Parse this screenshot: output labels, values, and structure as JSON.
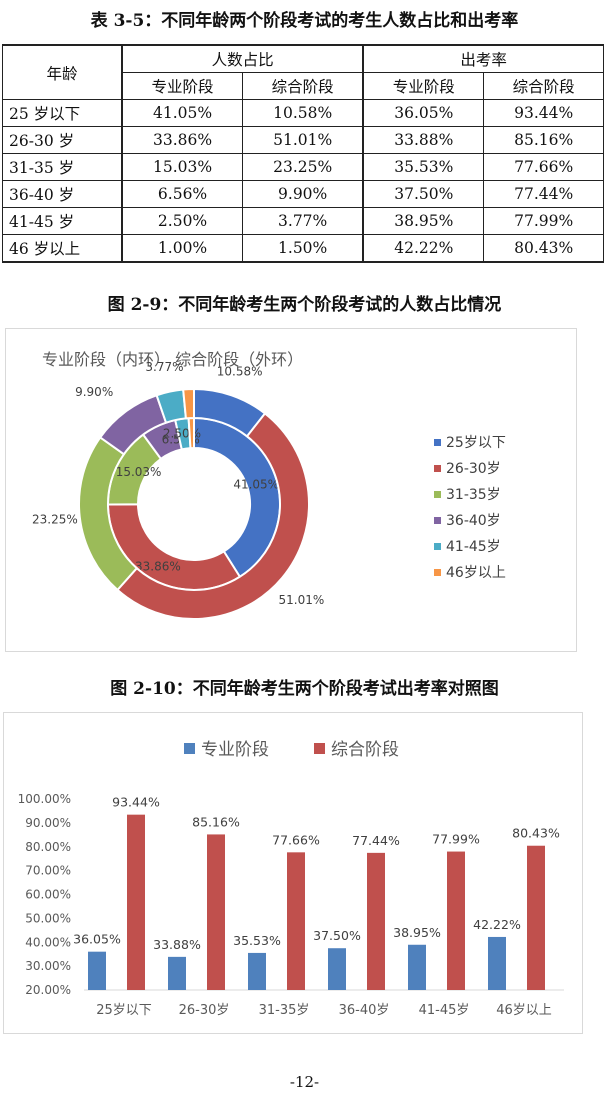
{
  "table": {
    "caption": "表 3-5：不同年龄两个阶段考试的考生人数占比和出考率",
    "header_age": "年龄",
    "group_share": "人数占比",
    "group_rate": "出考率",
    "sub_headers": [
      "专业阶段",
      "综合阶段",
      "专业阶段",
      "综合阶段"
    ],
    "rows": [
      {
        "age": "25 岁以下",
        "share_prof": "41.05%",
        "share_comp": "10.58%",
        "rate_prof": "36.05%",
        "rate_comp": "93.44%"
      },
      {
        "age": "26-30 岁",
        "share_prof": "33.86%",
        "share_comp": "51.01%",
        "rate_prof": "33.88%",
        "rate_comp": "85.16%"
      },
      {
        "age": "31-35 岁",
        "share_prof": "15.03%",
        "share_comp": "23.25%",
        "rate_prof": "35.53%",
        "rate_comp": "77.66%"
      },
      {
        "age": "36-40 岁",
        "share_prof": "6.56%",
        "share_comp": "9.90%",
        "rate_prof": "37.50%",
        "rate_comp": "77.44%"
      },
      {
        "age": "41-45 岁",
        "share_prof": "2.50%",
        "share_comp": "3.77%",
        "rate_prof": "38.95%",
        "rate_comp": "77.99%"
      },
      {
        "age": "46 岁以上",
        "share_prof": "1.00%",
        "share_comp": "1.50%",
        "rate_prof": "42.22%",
        "rate_comp": "80.43%"
      }
    ]
  },
  "fig9": {
    "caption": "图 2-9：不同年龄考生两个阶段考试的人数占比情况"
  },
  "fig10": {
    "caption": "图 2-10：不同年龄考生两个阶段考试出考率对照图"
  },
  "page_number": "-12-",
  "chart_data": [
    {
      "type": "pie",
      "style": "donut",
      "title": "专业阶段（内环）    综合阶段（外环）",
      "categories": [
        "25岁以下",
        "26-30岁",
        "31-35岁",
        "36-40岁",
        "41-45岁",
        "46岁以上"
      ],
      "series": [
        {
          "ring": "inner",
          "values": [
            41.05,
            33.86,
            15.03,
            6.56,
            2.5,
            1.0
          ]
        },
        {
          "ring": "outer",
          "values": [
            10.58,
            51.01,
            23.25,
            9.9,
            3.77,
            1.5
          ]
        }
      ],
      "data_labels": {
        "inner": [
          "41.05%",
          "33.86%",
          "15.03%",
          "6.56%",
          "2.50%",
          ""
        ],
        "outer": [
          "10.58%",
          "51.01%",
          "23.25%",
          "9.90%",
          "3.77%",
          ""
        ]
      },
      "colors": [
        "#4472C4",
        "#C0504D",
        "#9BBB59",
        "#8064A2",
        "#4BACC6",
        "#F79646"
      ],
      "legend": "right",
      "legend_labels": [
        "25岁以下",
        "26-30岁",
        "31-35岁",
        "36-40岁",
        "41-45岁",
        "46岁以上"
      ]
    },
    {
      "type": "bar",
      "categories": [
        "25岁以下",
        "26-30岁",
        "31-35岁",
        "36-40岁",
        "41-45岁",
        "46岁以上"
      ],
      "series": [
        {
          "name": "专业阶段",
          "values": [
            36.05,
            33.88,
            35.53,
            37.5,
            38.95,
            42.22
          ],
          "labels": [
            "36.05%",
            "33.88%",
            "35.53%",
            "37.50%",
            "38.95%",
            "42.22%"
          ],
          "color": "#4F81BD"
        },
        {
          "name": "综合阶段",
          "values": [
            93.44,
            85.16,
            77.66,
            77.44,
            77.99,
            80.43
          ],
          "labels": [
            "93.44%",
            "85.16%",
            "77.66%",
            "77.44%",
            "77.99%",
            "80.43%"
          ],
          "color": "#C0504D"
        }
      ],
      "ylim": [
        20,
        100
      ],
      "y_ticks": [
        "20.00%",
        "30.00%",
        "40.00%",
        "50.00%",
        "60.00%",
        "70.00%",
        "80.00%",
        "90.00%",
        "100.00%"
      ],
      "grid": false,
      "legend": "top"
    }
  ]
}
